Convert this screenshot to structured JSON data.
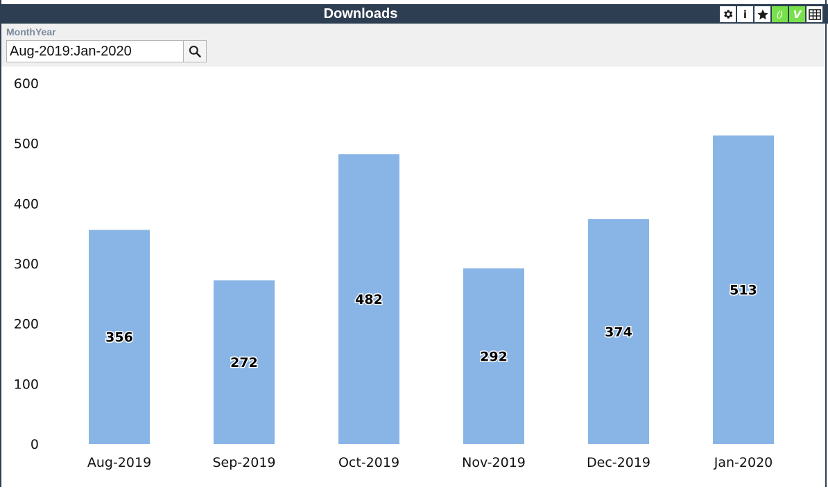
{
  "window": {
    "title": "Downloads"
  },
  "toolbar": {
    "settings_icon": "gear-icon",
    "info_label": "i",
    "favorite_icon": "star-icon",
    "braces_label": "()",
    "v_label": "V",
    "table_icon": "table-icon",
    "accent_color": "#77e04a",
    "header_color": "#2e3e52"
  },
  "filter": {
    "label": "MonthYear",
    "value": "Aug-2019:Jan-2020",
    "search_icon": "search-icon"
  },
  "chart_data": {
    "type": "bar",
    "categories": [
      "Aug-2019",
      "Sep-2019",
      "Oct-2019",
      "Nov-2019",
      "Dec-2019",
      "Jan-2020"
    ],
    "values": [
      356,
      272,
      482,
      292,
      374,
      513
    ],
    "ylim": [
      0,
      600
    ],
    "yticks": [
      0,
      100,
      200,
      300,
      400,
      500,
      600
    ],
    "bar_color": "#89b4e6",
    "grid": false,
    "legend": "none",
    "data_labels": true
  }
}
